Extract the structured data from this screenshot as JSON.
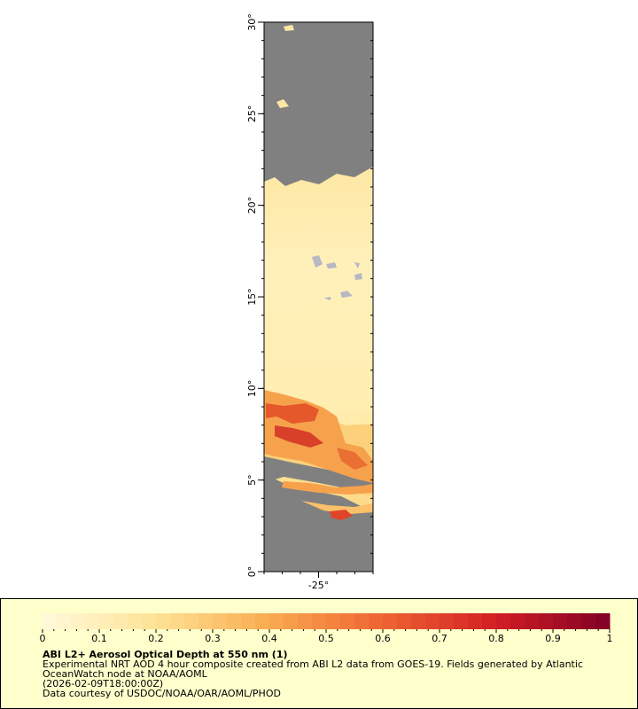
{
  "map": {
    "ylim": [
      0,
      30
    ],
    "xlim": [
      -28,
      -22
    ],
    "yticks": [
      {
        "value": 0,
        "label": "0°"
      },
      {
        "value": 5,
        "label": "5°"
      },
      {
        "value": 10,
        "label": "10°"
      },
      {
        "value": 15,
        "label": "15°"
      },
      {
        "value": 20,
        "label": "20°"
      },
      {
        "value": 25,
        "label": "25°"
      },
      {
        "value": 30,
        "label": "30°"
      }
    ],
    "xticks": [
      {
        "value": -25,
        "label": "-25°"
      }
    ]
  },
  "legend": {
    "colorbar": {
      "lim": [
        0,
        1
      ],
      "ticks": [
        0,
        0.1,
        0.2,
        0.3,
        0.4,
        0.5,
        0.6,
        0.7,
        0.8,
        0.9,
        1
      ]
    },
    "title": "ABI L2+ Aerosol Optical Depth at 550 nm (1)",
    "lines": [
      "Experimental NRT AOD 4 hour composite created from ABI L2 data from GOES-19. Fields generated by Atlantic",
      "OceanWatch node at NOAA/AOML",
      "(2026-02-09T18:00:00Z)",
      "Data courtesy of USDOC/NOAA/OAR/AOML/PHOD"
    ]
  }
}
